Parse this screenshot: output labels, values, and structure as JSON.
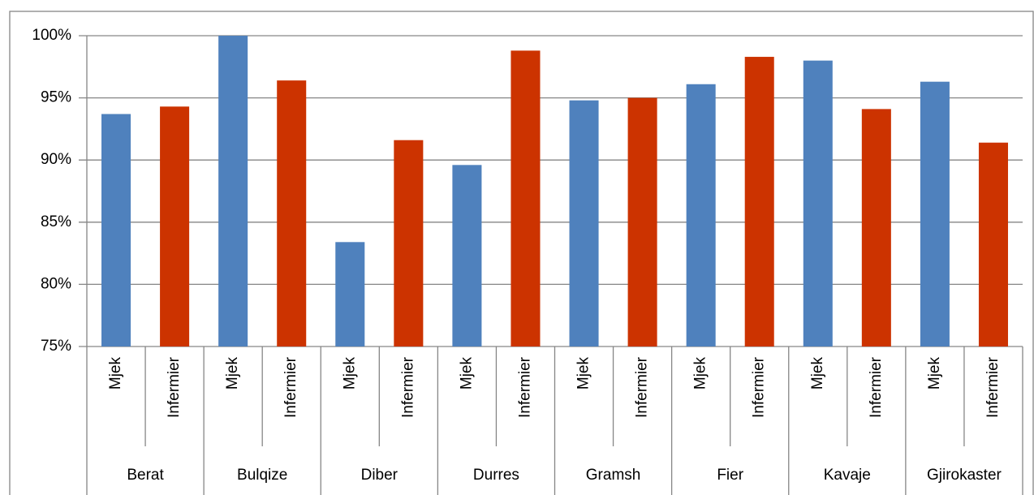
{
  "chart_data": {
    "type": "bar",
    "categories": [
      "Berat",
      "Bulqize",
      "Diber",
      "Durres",
      "Gramsh",
      "Fier",
      "Kavaje",
      "Gjirokaster"
    ],
    "series": [
      {
        "name": "Mjek",
        "color": "#4f81bd",
        "values": [
          93.7,
          100,
          83.4,
          89.6,
          94.8,
          96.1,
          98.0,
          96.3
        ]
      },
      {
        "name": "Infermier",
        "color": "#cc3300",
        "values": [
          94.3,
          96.4,
          91.6,
          98.8,
          95.0,
          98.3,
          94.1,
          91.4
        ]
      }
    ],
    "ylim": [
      75,
      100
    ],
    "yticks": [
      {
        "value": 75,
        "label": "75%"
      },
      {
        "value": 80,
        "label": "80%"
      },
      {
        "value": 85,
        "label": "85%"
      },
      {
        "value": 90,
        "label": "90%"
      },
      {
        "value": 95,
        "label": "95%"
      },
      {
        "value": 100,
        "label": "100%"
      }
    ],
    "grid": true
  }
}
